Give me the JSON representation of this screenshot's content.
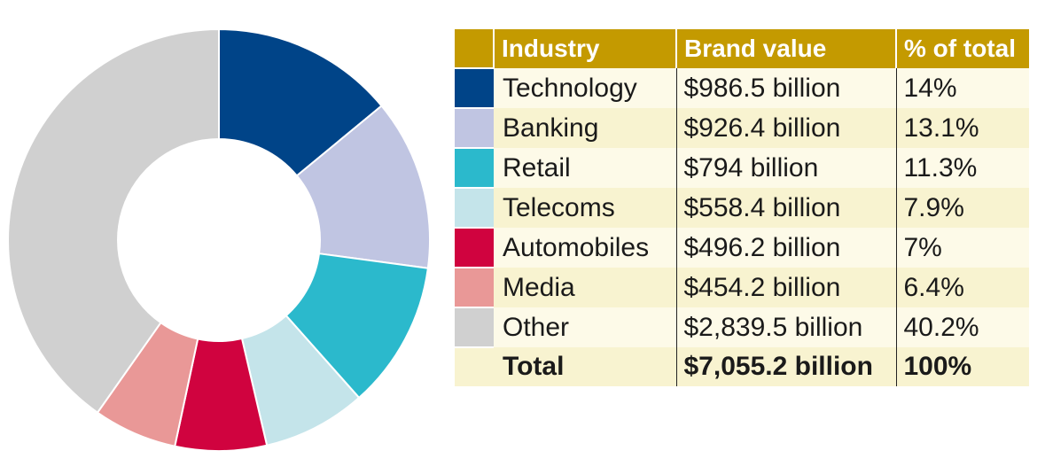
{
  "chart_data": {
    "type": "pie",
    "style": "donut",
    "columns": [
      "Industry",
      "Brand value",
      "% of total"
    ],
    "categories": [
      "Technology",
      "Banking",
      "Retail",
      "Telecoms",
      "Automobiles",
      "Media",
      "Other"
    ],
    "brand_values": [
      "$986.5 billion",
      "$926.4 billion",
      "$794 billion",
      "$558.4 billion",
      "$496.2 billion",
      "$454.2 billion",
      "$2,839.5 billion"
    ],
    "percent_labels": [
      "14%",
      "13.1%",
      "11.3%",
      "7.9%",
      "7%",
      "6.4%",
      "40.2%"
    ],
    "values": [
      14,
      13.1,
      11.3,
      7.9,
      7,
      6.4,
      40.2
    ],
    "colors": [
      "#004488",
      "#c0c5e2",
      "#2bb9cc",
      "#c4e4ea",
      "#d0033f",
      "#e99897",
      "#d0d0d0"
    ],
    "total": {
      "label": "Total",
      "value": "$7,055.2 billion",
      "percent": "100%"
    },
    "legend_placement": "right"
  }
}
